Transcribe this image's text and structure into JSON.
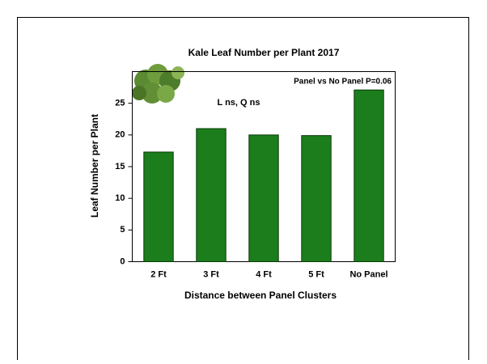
{
  "chart_data": {
    "type": "bar",
    "title": "Kale Leaf Number per Plant 2017",
    "annotations": [
      "Panel vs No Panel P=0.06",
      "L ns, Q ns"
    ],
    "x_label": "Distance between Panel Clusters",
    "y_label": "Leaf Number per Plant",
    "categories": [
      "2 Ft",
      "3 Ft",
      "4 Ft",
      "5 Ft",
      "No Panel"
    ],
    "values": [
      17.3,
      21.0,
      20.0,
      19.9,
      27.1
    ],
    "color": "#1b7d1b",
    "ylim": [
      0,
      30
    ],
    "yticks": [
      0,
      5,
      10,
      15,
      20,
      25
    ],
    "grid": false
  }
}
